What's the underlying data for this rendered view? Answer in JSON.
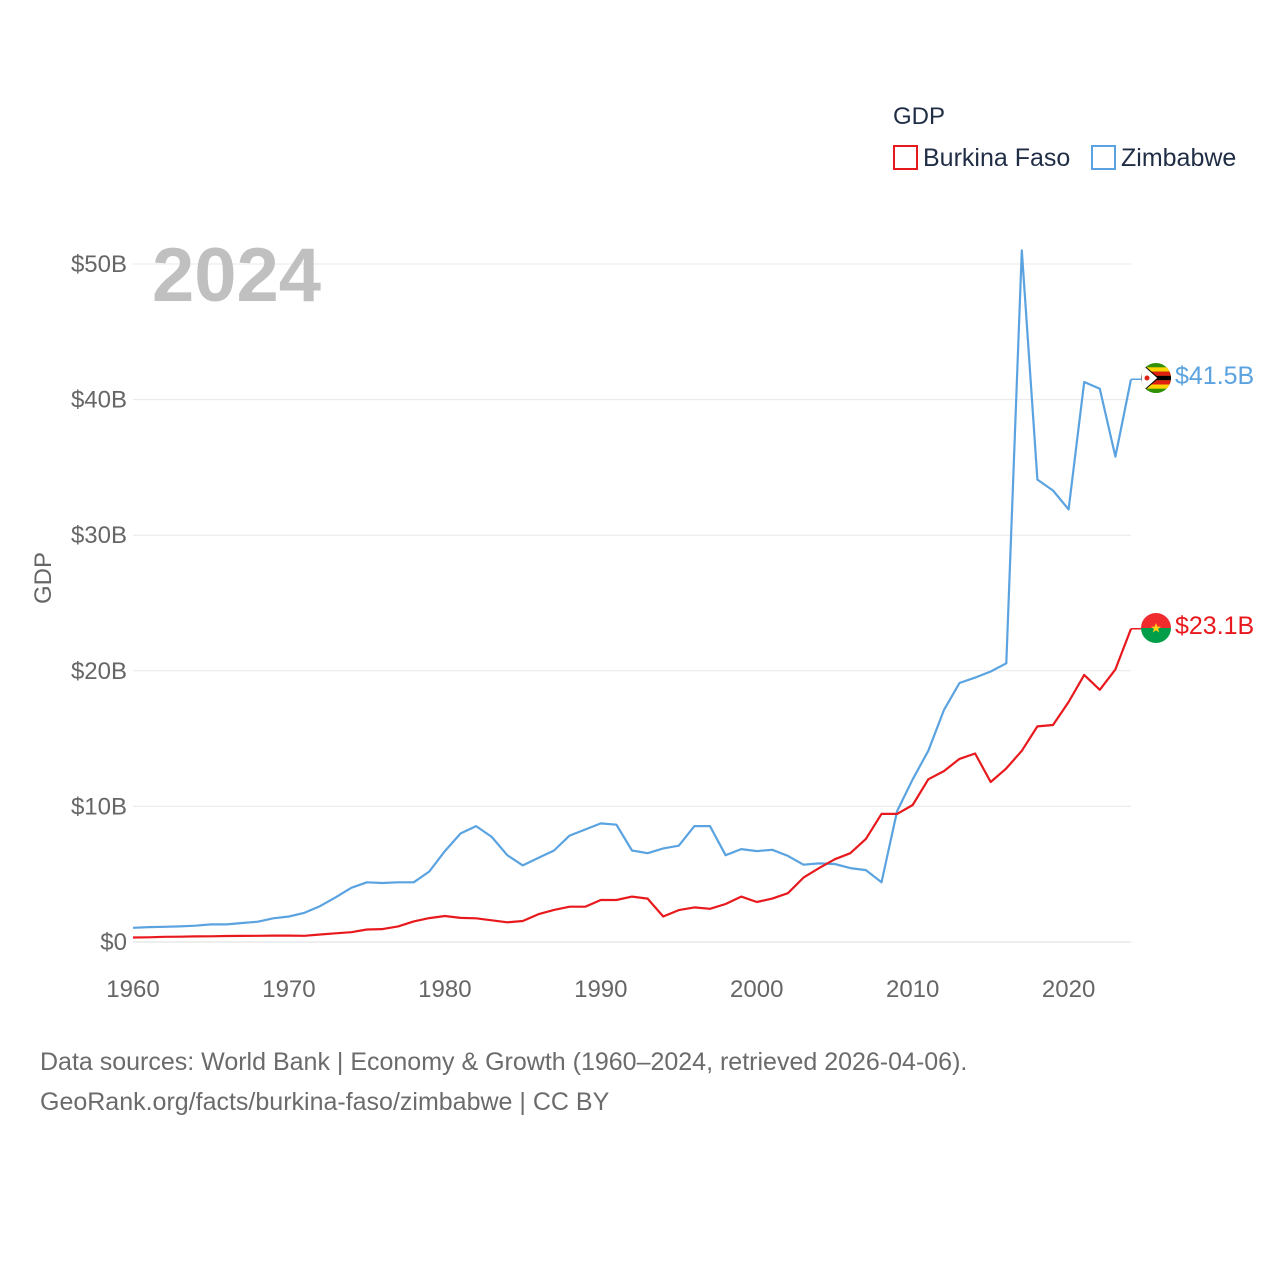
{
  "chart_data": {
    "type": "line",
    "year_label": "2024",
    "legend_title": "GDP",
    "ylabel": "GDP",
    "ylim": [
      0,
      50
    ],
    "xlim": [
      1960,
      2024
    ],
    "x_ticks": [
      1960,
      1970,
      1980,
      1990,
      2000,
      2010,
      2020
    ],
    "y_ticks": [
      {
        "value": 0,
        "label": "$0"
      },
      {
        "value": 10,
        "label": "$10B"
      },
      {
        "value": 20,
        "label": "$20B"
      },
      {
        "value": 30,
        "label": "$30B"
      },
      {
        "value": 40,
        "label": "$40B"
      },
      {
        "value": 50,
        "label": "$50B"
      }
    ],
    "x": [
      1960,
      1961,
      1962,
      1963,
      1964,
      1965,
      1966,
      1967,
      1968,
      1969,
      1970,
      1971,
      1972,
      1973,
      1974,
      1975,
      1976,
      1977,
      1978,
      1979,
      1980,
      1981,
      1982,
      1983,
      1984,
      1985,
      1986,
      1987,
      1988,
      1989,
      1990,
      1991,
      1992,
      1993,
      1994,
      1995,
      1996,
      1997,
      1998,
      1999,
      2000,
      2001,
      2002,
      2003,
      2004,
      2005,
      2006,
      2007,
      2008,
      2009,
      2010,
      2011,
      2012,
      2013,
      2014,
      2015,
      2016,
      2017,
      2018,
      2019,
      2020,
      2021,
      2022,
      2023,
      2024
    ],
    "series": [
      {
        "name": "Burkina Faso",
        "color": "#e8191d",
        "end_label": "$23.1B",
        "values": [
          0.33,
          0.35,
          0.38,
          0.39,
          0.41,
          0.42,
          0.44,
          0.45,
          0.46,
          0.47,
          0.47,
          0.46,
          0.55,
          0.64,
          0.72,
          0.92,
          0.95,
          1.15,
          1.52,
          1.76,
          1.92,
          1.78,
          1.75,
          1.6,
          1.45,
          1.55,
          2.05,
          2.37,
          2.6,
          2.6,
          3.1,
          3.1,
          3.35,
          3.2,
          1.88,
          2.35,
          2.55,
          2.45,
          2.8,
          3.35,
          2.95,
          3.2,
          3.6,
          4.75,
          5.45,
          6.1,
          6.55,
          7.6,
          9.45,
          9.45,
          10.1,
          12.0,
          12.6,
          13.5,
          13.9,
          11.8,
          12.8,
          14.1,
          15.9,
          16.0,
          17.7,
          19.7,
          18.6,
          20.1,
          23.1
        ]
      },
      {
        "name": "Zimbabwe",
        "color": "#5aa3e0",
        "end_label": "$41.5B",
        "values": [
          1.05,
          1.1,
          1.12,
          1.15,
          1.2,
          1.3,
          1.3,
          1.4,
          1.5,
          1.75,
          1.88,
          2.15,
          2.65,
          3.3,
          4.0,
          4.4,
          4.35,
          4.4,
          4.4,
          5.2,
          6.7,
          8.0,
          8.55,
          7.75,
          6.4,
          5.65,
          6.2,
          6.75,
          7.85,
          8.3,
          8.75,
          8.65,
          6.75,
          6.55,
          6.9,
          7.1,
          8.55,
          8.55,
          6.4,
          6.85,
          6.7,
          6.8,
          6.35,
          5.7,
          5.8,
          5.75,
          5.45,
          5.3,
          4.4,
          9.65,
          12.0,
          14.1,
          17.1,
          19.1,
          19.5,
          19.95,
          20.55,
          51.0,
          34.1,
          33.3,
          31.9,
          41.3,
          40.8,
          35.8,
          41.5
        ]
      }
    ]
  },
  "source": {
    "line1": "Data sources: World Bank | Economy & Growth (1960–2024, retrieved 2026-04-06).",
    "line2": "GeoRank.org/facts/burkina-faso/zimbabwe | CC BY"
  }
}
